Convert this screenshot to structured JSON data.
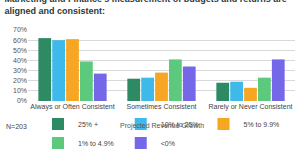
{
  "chart_data": {
    "type": "bar",
    "title": "Marketing and Finance's measurement of budgets and returns are aligned and consistent:",
    "categories": [
      "Always or Often Consistent",
      "Sometimes Consistent",
      "Rarely or Never Consistent"
    ],
    "series": [
      {
        "name": "25% +",
        "color": "#2e8a63",
        "values": [
          62,
          22,
          18
        ]
      },
      {
        "name": "10% to 25%",
        "color": "#3fb9ea",
        "values": [
          60,
          23,
          19
        ]
      },
      {
        "name": "5% to 9.9%",
        "color": "#f6a623",
        "values": [
          61,
          28,
          13
        ]
      },
      {
        "name": "1% to 4.9%",
        "color": "#5cc97d",
        "values": [
          39,
          41,
          23
        ]
      },
      {
        "name": "<0%",
        "color": "#7468e8",
        "values": [
          27,
          34,
          41
        ]
      }
    ],
    "ylim": [
      0,
      70
    ],
    "yticks": [
      {
        "value": 0,
        "label": "0%"
      },
      {
        "value": 10,
        "label": "10%"
      },
      {
        "value": 20,
        "label": "20%"
      },
      {
        "value": 30,
        "label": "30%"
      },
      {
        "value": 40,
        "label": "40%"
      },
      {
        "value": 50,
        "label": "50%"
      },
      {
        "value": 60,
        "label": "60%"
      },
      {
        "value": 70,
        "label": "70%"
      }
    ],
    "legend_title": "Projected Revenue Growth",
    "annotations": [
      "N=203"
    ],
    "grid": true,
    "legend": "bottom"
  }
}
